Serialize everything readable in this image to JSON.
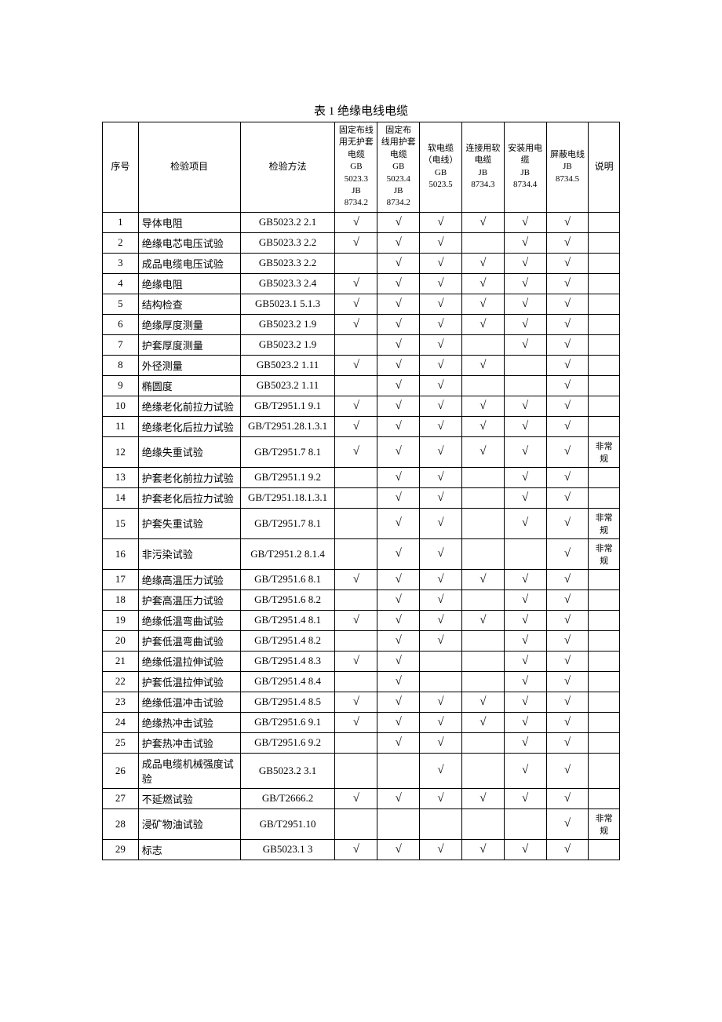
{
  "title": "表 1 绝缘电线电缆",
  "headers": {
    "seq": "序号",
    "item": "检验项目",
    "method": "检验方法",
    "col1": "固定布线用无护套电缆\nGB 5023.3\nJB 8734.2",
    "col2": "固定布线用护套电缆\nGB 5023.4\nJB 8734.2",
    "col3": "软电缆（电线）\nGB 5023.5",
    "col4": "连接用软电缆\nJB 8734.3",
    "col5": "安装用电缆\nJB 8734.4",
    "col6": "屏蔽电线JB 8734.5",
    "note": "说明"
  },
  "check": "√",
  "rows": [
    {
      "n": "1",
      "item": "导体电阻",
      "method": "GB5023.2 2.1",
      "c": [
        1,
        1,
        1,
        1,
        1,
        1
      ],
      "note": ""
    },
    {
      "n": "2",
      "item": "绝缘电芯电压试验",
      "method": "GB5023.3 2.2",
      "c": [
        1,
        1,
        1,
        0,
        1,
        1
      ],
      "note": ""
    },
    {
      "n": "3",
      "item": "成品电缆电压试验",
      "method": "GB5023.3 2.2",
      "c": [
        0,
        1,
        1,
        1,
        1,
        1
      ],
      "note": ""
    },
    {
      "n": "4",
      "item": "绝缘电阻",
      "method": "GB5023.3 2.4",
      "c": [
        1,
        1,
        1,
        1,
        1,
        1
      ],
      "note": ""
    },
    {
      "n": "5",
      "item": "结构检查",
      "method": "GB5023.1 5.1.3",
      "c": [
        1,
        1,
        1,
        1,
        1,
        1
      ],
      "note": ""
    },
    {
      "n": "6",
      "item": "绝缘厚度测量",
      "method": "GB5023.2 1.9",
      "c": [
        1,
        1,
        1,
        1,
        1,
        1
      ],
      "note": ""
    },
    {
      "n": "7",
      "item": "护套厚度测量",
      "method": "GB5023.2 1.9",
      "c": [
        0,
        1,
        1,
        0,
        1,
        1
      ],
      "note": ""
    },
    {
      "n": "8",
      "item": "外径测量",
      "method": "GB5023.2 1.11",
      "c": [
        1,
        1,
        1,
        1,
        0,
        1
      ],
      "note": ""
    },
    {
      "n": "9",
      "item": "椭圆度",
      "method": "GB5023.2 1.11",
      "c": [
        0,
        1,
        1,
        0,
        0,
        1
      ],
      "note": ""
    },
    {
      "n": "10",
      "item": "绝缘老化前拉力试验",
      "method": "GB/T2951.1 9.1",
      "c": [
        1,
        1,
        1,
        1,
        1,
        1
      ],
      "note": ""
    },
    {
      "n": "11",
      "item": "绝缘老化后拉力试验",
      "method": "GB/T2951.28.1.3.1",
      "c": [
        1,
        1,
        1,
        1,
        1,
        1
      ],
      "note": ""
    },
    {
      "n": "12",
      "item": "绝缘失重试验",
      "method": "GB/T2951.7 8.1",
      "c": [
        1,
        1,
        1,
        1,
        1,
        1
      ],
      "note": "非常规"
    },
    {
      "n": "13",
      "item": "护套老化前拉力试验",
      "method": "GB/T2951.1 9.2",
      "c": [
        0,
        1,
        1,
        0,
        1,
        1
      ],
      "note": ""
    },
    {
      "n": "14",
      "item": "护套老化后拉力试验",
      "method": "GB/T2951.18.1.3.1",
      "c": [
        0,
        1,
        1,
        0,
        1,
        1
      ],
      "note": ""
    },
    {
      "n": "15",
      "item": "护套失重试验",
      "method": "GB/T2951.7 8.1",
      "c": [
        0,
        1,
        1,
        0,
        1,
        1
      ],
      "note": "非常规"
    },
    {
      "n": "16",
      "item": "非污染试验",
      "method": "GB/T2951.2 8.1.4",
      "c": [
        0,
        1,
        1,
        0,
        0,
        1
      ],
      "note": "非常规"
    },
    {
      "n": "17",
      "item": "绝缘高温压力试验",
      "method": "GB/T2951.6 8.1",
      "c": [
        1,
        1,
        1,
        1,
        1,
        1
      ],
      "note": ""
    },
    {
      "n": "18",
      "item": "护套高温压力试验",
      "method": "GB/T2951.6 8.2",
      "c": [
        0,
        1,
        1,
        0,
        1,
        1
      ],
      "note": ""
    },
    {
      "n": "19",
      "item": "绝缘低温弯曲试验",
      "method": "GB/T2951.4 8.1",
      "c": [
        1,
        1,
        1,
        1,
        1,
        1
      ],
      "note": ""
    },
    {
      "n": "20",
      "item": "护套低温弯曲试验",
      "method": "GB/T2951.4 8.2",
      "c": [
        0,
        1,
        1,
        0,
        1,
        1
      ],
      "note": ""
    },
    {
      "n": "21",
      "item": "绝缘低温拉伸试验",
      "method": "GB/T2951.4 8.3",
      "c": [
        1,
        1,
        0,
        0,
        1,
        1
      ],
      "note": ""
    },
    {
      "n": "22",
      "item": "护套低温拉伸试验",
      "method": "GB/T2951.4 8.4",
      "c": [
        0,
        1,
        0,
        0,
        1,
        1
      ],
      "note": ""
    },
    {
      "n": "23",
      "item": "绝缘低温冲击试验",
      "method": "GB/T2951.4 8.5",
      "c": [
        1,
        1,
        1,
        1,
        1,
        1
      ],
      "note": ""
    },
    {
      "n": "24",
      "item": "绝缘热冲击试验",
      "method": "GB/T2951.6 9.1",
      "c": [
        1,
        1,
        1,
        1,
        1,
        1
      ],
      "note": ""
    },
    {
      "n": "25",
      "item": "护套热冲击试验",
      "method": "GB/T2951.6 9.2",
      "c": [
        0,
        1,
        1,
        0,
        1,
        1
      ],
      "note": ""
    },
    {
      "n": "26",
      "item": "成品电缆机械强度试验",
      "method": "GB5023.2 3.1",
      "c": [
        0,
        0,
        1,
        0,
        1,
        1
      ],
      "note": ""
    },
    {
      "n": "27",
      "item": "不延燃试验",
      "method": "GB/T2666.2",
      "c": [
        1,
        1,
        1,
        1,
        1,
        1
      ],
      "note": ""
    },
    {
      "n": "28",
      "item": "浸矿物油试验",
      "method": "GB/T2951.10",
      "c": [
        0,
        0,
        0,
        0,
        0,
        1
      ],
      "note": "非常规"
    },
    {
      "n": "29",
      "item": "标志",
      "method": "GB5023.1 3",
      "c": [
        1,
        1,
        1,
        1,
        1,
        1
      ],
      "note": ""
    }
  ]
}
